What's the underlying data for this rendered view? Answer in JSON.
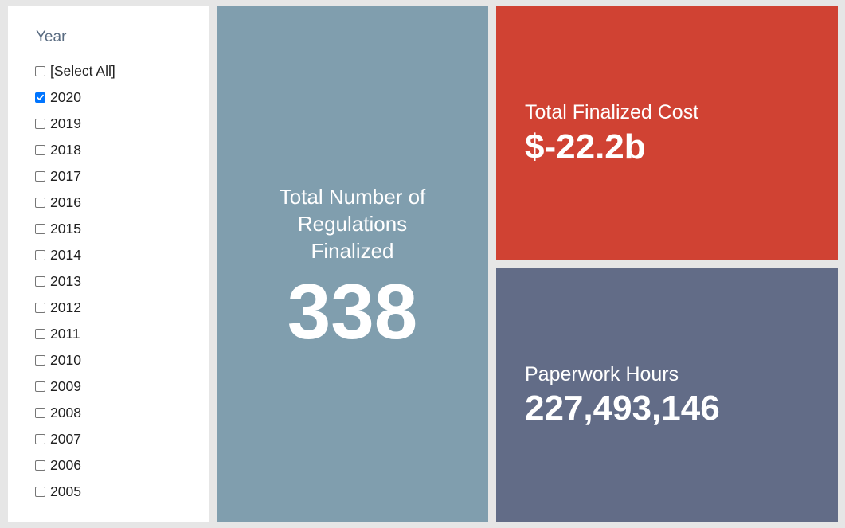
{
  "filter": {
    "title": "Year",
    "items": [
      {
        "label": "[Select All]",
        "checked": false
      },
      {
        "label": "2020",
        "checked": true
      },
      {
        "label": "2019",
        "checked": false
      },
      {
        "label": "2018",
        "checked": false
      },
      {
        "label": "2017",
        "checked": false
      },
      {
        "label": "2016",
        "checked": false
      },
      {
        "label": "2015",
        "checked": false
      },
      {
        "label": "2014",
        "checked": false
      },
      {
        "label": "2013",
        "checked": false
      },
      {
        "label": "2012",
        "checked": false
      },
      {
        "label": "2011",
        "checked": false
      },
      {
        "label": "2010",
        "checked": false
      },
      {
        "label": "2009",
        "checked": false
      },
      {
        "label": "2008",
        "checked": false
      },
      {
        "label": "2007",
        "checked": false
      },
      {
        "label": "2006",
        "checked": false
      },
      {
        "label": "2005",
        "checked": false
      }
    ]
  },
  "kpis": {
    "regulations": {
      "label": "Total Number of Regulations Finalized",
      "value": "338",
      "color": "#809eae"
    },
    "cost": {
      "label": "Total Finalized Cost",
      "value": "$-22.2b",
      "color": "#d04233"
    },
    "hours": {
      "label": "Paperwork Hours",
      "value": "227,493,146",
      "color": "#626c87"
    }
  }
}
